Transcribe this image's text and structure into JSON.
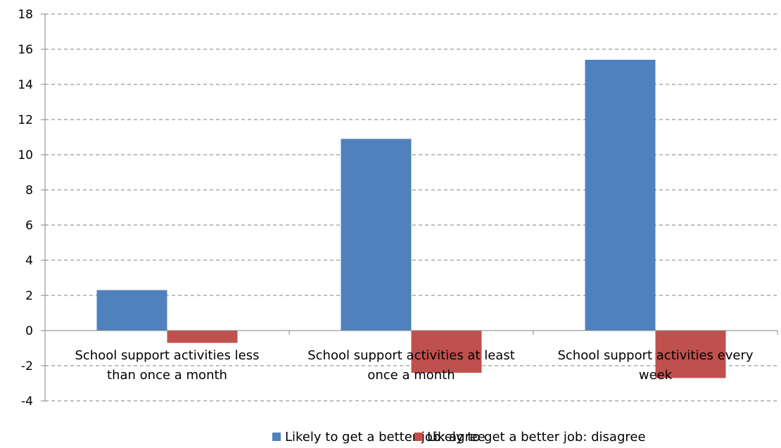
{
  "chart_data": {
    "type": "bar",
    "title": "",
    "xlabel": "",
    "ylabel": "",
    "categories": [
      [
        "School support activities less",
        "than once a month"
      ],
      [
        "School support activities at least",
        "once a month"
      ],
      [
        "School support activities every",
        "week"
      ]
    ],
    "series": [
      {
        "name": "Likely to get a better job: agree",
        "color": "#4F81BD",
        "values": [
          2.3,
          10.9,
          15.4
        ]
      },
      {
        "name": "Likely to get a better job: disagree",
        "color": "#C0504D",
        "values": [
          -0.7,
          -2.4,
          -2.7
        ]
      }
    ],
    "ylim": [
      -4,
      18
    ],
    "yticks": [
      -4,
      -2,
      0,
      2,
      4,
      6,
      8,
      10,
      12,
      14,
      16,
      18
    ],
    "grid": true,
    "grid_style": "dashed",
    "legend_position": "bottom"
  }
}
